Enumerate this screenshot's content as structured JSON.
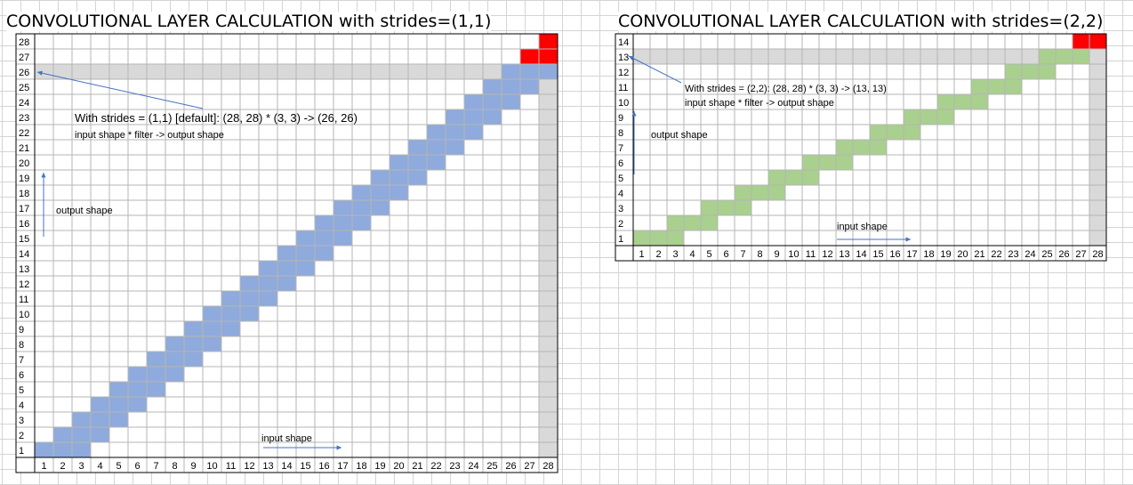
{
  "colors": {
    "stride1_cell": "#8faadc",
    "stride2_cell": "#a9d08e",
    "kernel_cell": "#ff0000",
    "overlap_band": "#d9d9d9",
    "arrow": "#4472c4",
    "cell_border": "#000000"
  },
  "left_panel": {
    "title": "CONVOLUTIONAL LAYER CALCULATION with strides=(1,1)",
    "formula": "With strides = (1,1) [default]: (28, 28) * (3, 3) -> (26, 26)",
    "formula_caption": "input shape * filter -> output shape",
    "output_label": "output shape",
    "input_label": "input shape",
    "grid": {
      "cols": [
        "1",
        "2",
        "3",
        "4",
        "5",
        "6",
        "7",
        "8",
        "9",
        "10",
        "11",
        "12",
        "13",
        "14",
        "15",
        "16",
        "17",
        "18",
        "19",
        "20",
        "21",
        "22",
        "23",
        "24",
        "25",
        "26",
        "27",
        "28"
      ],
      "rows": [
        "1",
        "2",
        "3",
        "4",
        "5",
        "6",
        "7",
        "8",
        "9",
        "10",
        "11",
        "12",
        "13",
        "14",
        "15",
        "16",
        "17",
        "18",
        "19",
        "20",
        "21",
        "22",
        "23",
        "24",
        "25",
        "26",
        "27",
        "28"
      ],
      "stride": 1,
      "kernel": 3,
      "output_size": 26
    }
  },
  "right_panel": {
    "title": "CONVOLUTIONAL LAYER CALCULATION with strides=(2,2)",
    "formula": "With strides = (2,2): (28, 28) * (3, 3) -> (13, 13)",
    "formula_caption": "input shape * filter -> output shape",
    "output_label": "output shape",
    "input_label": "input shape",
    "grid": {
      "cols": [
        "1",
        "2",
        "3",
        "4",
        "5",
        "6",
        "7",
        "8",
        "9",
        "10",
        "11",
        "12",
        "13",
        "14",
        "15",
        "16",
        "17",
        "18",
        "19",
        "20",
        "21",
        "22",
        "23",
        "24",
        "25",
        "26",
        "27",
        "28"
      ],
      "rows": [
        "1",
        "2",
        "3",
        "4",
        "5",
        "6",
        "7",
        "8",
        "9",
        "10",
        "11",
        "12",
        "13",
        "14"
      ],
      "stride": 2,
      "kernel": 3,
      "output_size": 13
    }
  }
}
